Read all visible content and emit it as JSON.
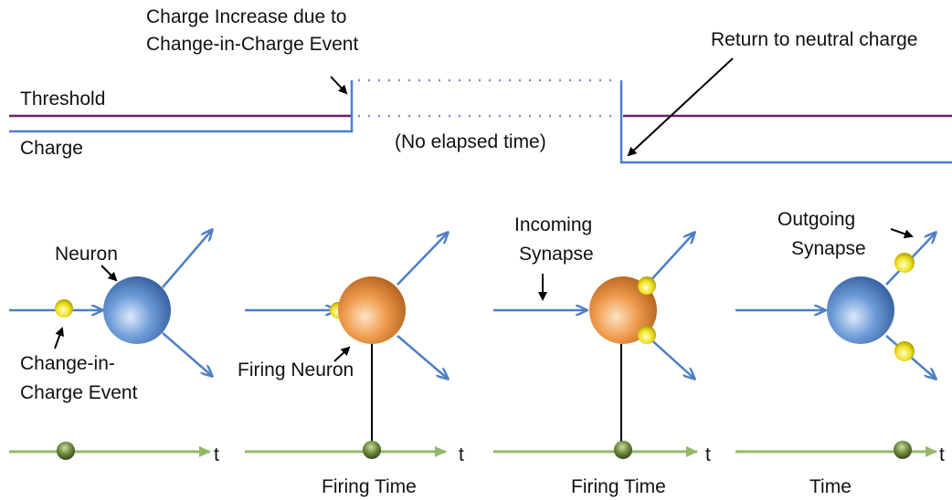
{
  "top": {
    "threshold": "Threshold",
    "charge": "Charge",
    "increase_label": [
      "Charge Increase due to",
      "Change-in-Charge Event"
    ],
    "return_label": "Return to neutral charge",
    "no_elapsed": "(No elapsed time)"
  },
  "panels": [
    {
      "labels": [
        "Neuron",
        "Change-in-",
        "Charge Event"
      ],
      "axis_label": "t"
    },
    {
      "labels": [
        "Firing Neuron"
      ],
      "axis_label": "t",
      "time_label": "Firing Time"
    },
    {
      "labels": [
        "Incoming",
        "Synapse"
      ],
      "axis_label": "t",
      "time_label": "Firing Time"
    },
    {
      "labels": [
        "Outgoing",
        "Synapse"
      ],
      "axis_label": "t",
      "time_label": "Time"
    }
  ]
}
